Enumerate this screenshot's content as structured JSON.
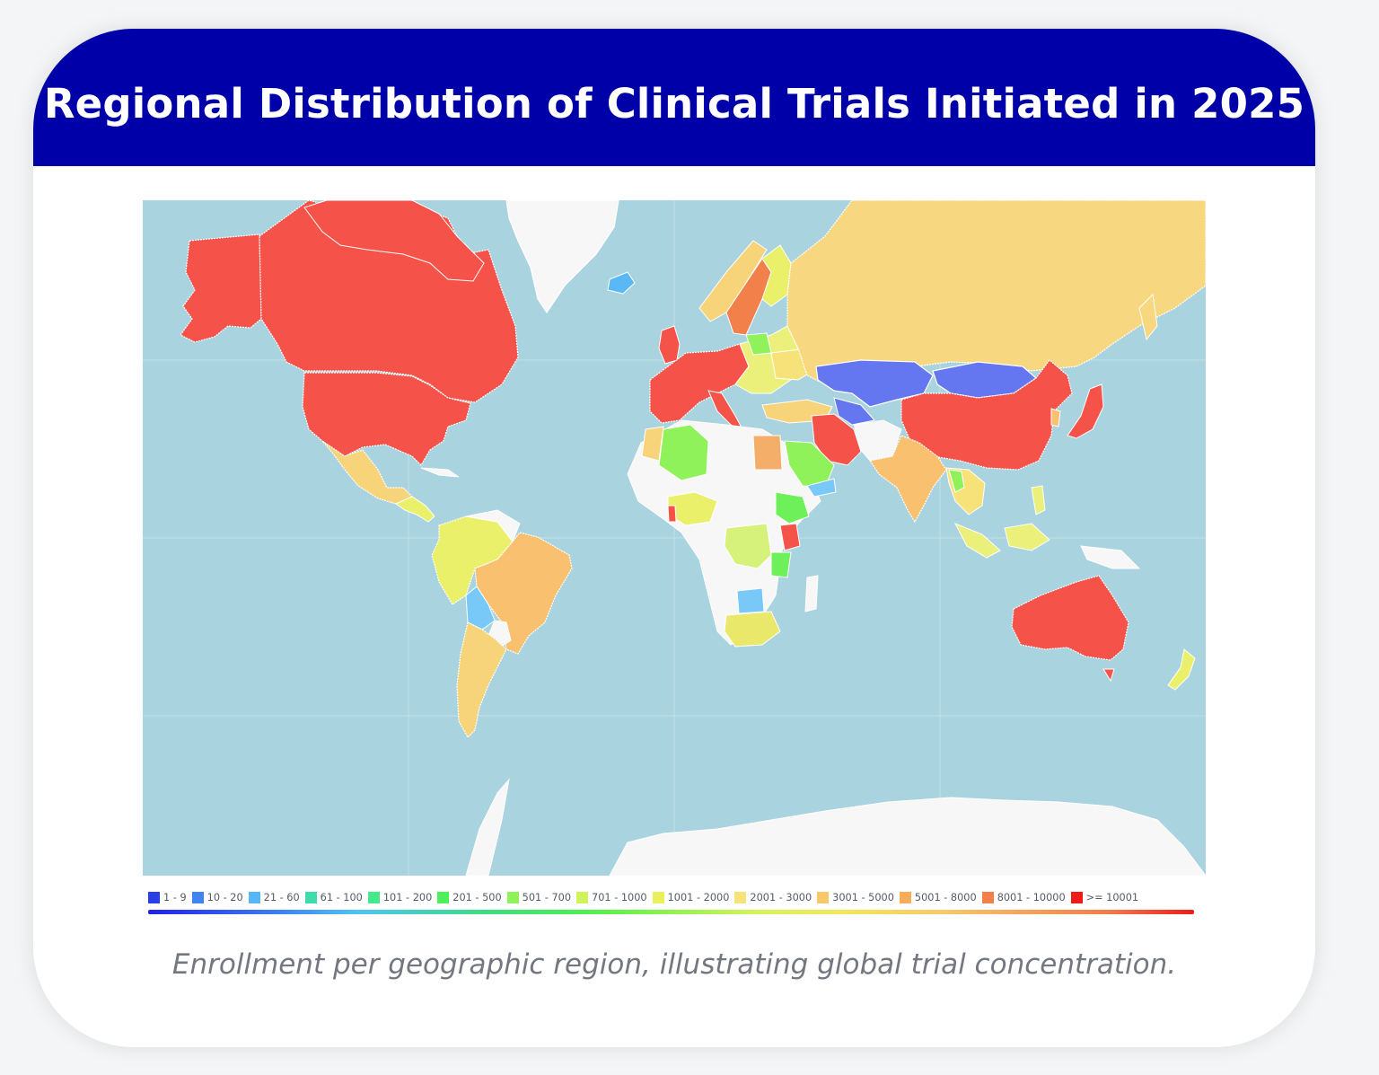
{
  "title": "Regional Distribution of Clinical Trials Initiated in 2025",
  "caption": "Enrollment per geographic region, illustrating global trial concentration.",
  "colors": {
    "header_bg": "#0000a8",
    "ocean": "#a9d3de",
    "land_default": "#f2f2f2",
    "no_data": "#f7f7f7"
  },
  "legend": [
    {
      "label": "1 - 9",
      "color": "#2a3ee8"
    },
    {
      "label": "10 - 20",
      "color": "#3f84f0"
    },
    {
      "label": "21 - 60",
      "color": "#55b8f5"
    },
    {
      "label": "61 - 100",
      "color": "#3ddcaa"
    },
    {
      "label": "101 - 200",
      "color": "#45e88a"
    },
    {
      "label": "201 - 500",
      "color": "#4ef05a"
    },
    {
      "label": "501 - 700",
      "color": "#8ff25a"
    },
    {
      "label": "701 - 1000",
      "color": "#d0f25a"
    },
    {
      "label": "1001 - 2000",
      "color": "#eaf05a"
    },
    {
      "label": "2001 - 3000",
      "color": "#f7e27a"
    },
    {
      "label": "3001 - 5000",
      "color": "#f9c86a"
    },
    {
      "label": "5001 - 8000",
      "color": "#f5ad5a"
    },
    {
      "label": "8001 - 10000",
      "color": "#f2804a"
    },
    {
      "label": ">= 10001",
      "color": "#ef1a1a"
    }
  ],
  "regions": [
    {
      "name": "Canada",
      "range": ">= 10001",
      "color": "#f5524a"
    },
    {
      "name": "United States",
      "range": ">= 10001",
      "color": "#f5524a"
    },
    {
      "name": "Alaska",
      "range": ">= 10001",
      "color": "#f5524a"
    },
    {
      "name": "Greenland",
      "range": "no data",
      "color": "#f7f7f7"
    },
    {
      "name": "Mexico",
      "range": "2001 - 3000",
      "color": "#f7d47a"
    },
    {
      "name": "Brazil",
      "range": "3001 - 5000",
      "color": "#f9c070"
    },
    {
      "name": "Argentina",
      "range": "2001 - 3000",
      "color": "#f7d47a"
    },
    {
      "name": "Colombia/Peru",
      "range": "1001 - 2000",
      "color": "#eaf06a"
    },
    {
      "name": "Bolivia",
      "range": "21 - 60",
      "color": "#78c8f8"
    },
    {
      "name": "Western Europe",
      "range": ">= 10001",
      "color": "#f5524a"
    },
    {
      "name": "Scandinavia",
      "range": "2001 - 3000",
      "color": "#f7d47a"
    },
    {
      "name": "Sweden",
      "range": "8001 - 10000",
      "color": "#f2804a"
    },
    {
      "name": "Russia",
      "range": "2001 - 3000",
      "color": "#f7d880"
    },
    {
      "name": "Kazakhstan",
      "range": "10 - 20",
      "color": "#6477f0"
    },
    {
      "name": "Mongolia",
      "range": "10 - 20",
      "color": "#6477f0"
    },
    {
      "name": "China",
      "range": ">= 10001",
      "color": "#f5524a"
    },
    {
      "name": "Iran",
      "range": ">= 10001",
      "color": "#f5524a"
    },
    {
      "name": "India",
      "range": "3001 - 5000",
      "color": "#f9c070"
    },
    {
      "name": "Japan",
      "range": ">= 10001",
      "color": "#f5524a"
    },
    {
      "name": "Australia",
      "range": ">= 10001",
      "color": "#f5524a"
    },
    {
      "name": "Algeria",
      "range": "501 - 700",
      "color": "#8ff25a"
    },
    {
      "name": "Egypt",
      "range": "5001 - 8000",
      "color": "#f5ad6a"
    },
    {
      "name": "Saudi Arabia",
      "range": "501 - 700",
      "color": "#8ff25a"
    },
    {
      "name": "Ethiopia",
      "range": "201 - 500",
      "color": "#6ef05a"
    },
    {
      "name": "Kenya",
      "range": ">= 10001",
      "color": "#f5524a"
    },
    {
      "name": "DR Congo",
      "range": "701 - 1000",
      "color": "#d6f27a"
    },
    {
      "name": "South Africa",
      "range": "1001 - 2000",
      "color": "#eae86a"
    },
    {
      "name": "Indonesia",
      "range": "1001 - 2000",
      "color": "#eaf07a"
    },
    {
      "name": "Turkey",
      "range": "2001 - 3000",
      "color": "#f7d47a"
    },
    {
      "name": "Ukraine",
      "range": "2001 - 3000",
      "color": "#f7e27a"
    }
  ]
}
